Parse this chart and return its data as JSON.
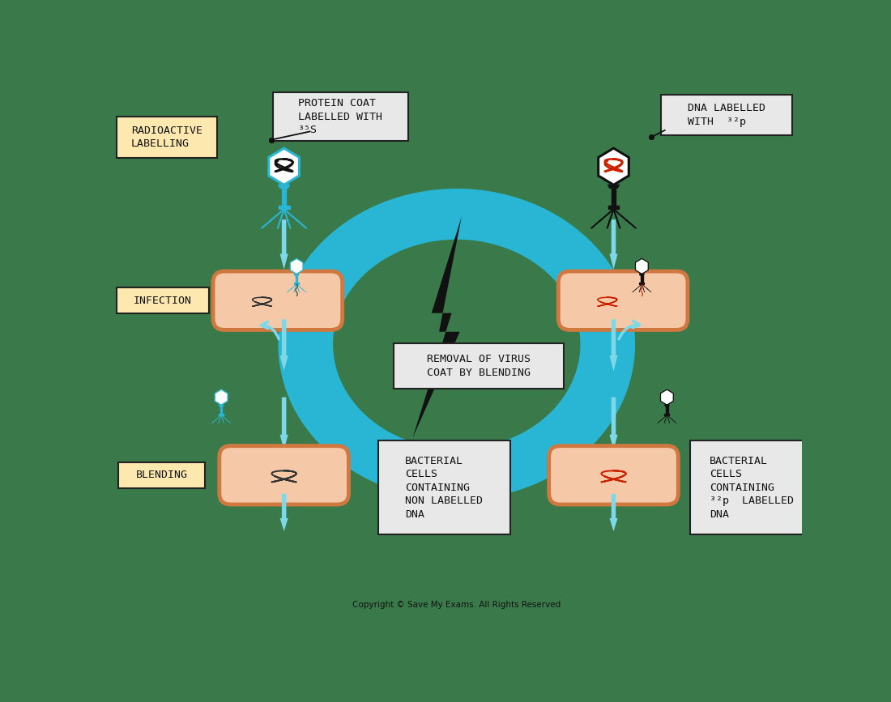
{
  "bg_color": "#3a7a4a",
  "copyright": "Copyright © Save My Exams. All Rights Reserved",
  "labels": {
    "radioactive_labelling": "RADIOACTIVE\nLABELLING",
    "infection": "INFECTION",
    "blending": "BLENDING",
    "protein_coat_box": "PROTEIN COAT\nLABELLED WITH\n³⁵S",
    "dna_labelled_box": "DNA LABELLED\nWITH  ³²p",
    "removal_text": "REMOVAL OF VIRUS\nCOAT BY BLENDING",
    "bacterial_left": "BACTERIAL\nCELLS\nCONTAINING\nNON LABELLED\nDNA",
    "bacterial_right": "BACTERIAL\nCELLS\nCONTAINING\n³²p  LABELLED\nDNA"
  },
  "colors": {
    "background": "#3a7a4a",
    "label_box_yellow": "#fde9b0",
    "label_box_border": "#222222",
    "white_box": "#e8e8e8",
    "white_box_border": "#222222",
    "arrow_blue": "#7dd8e8",
    "phage_blue": "#29b6d5",
    "phage_black": "#111111",
    "phage_red": "#cc2200",
    "bacterium_fill": "#f5c9a8",
    "bacterium_border": "#d07840",
    "lightning_black": "#111111",
    "lightning_blue": "#29b6d5"
  }
}
